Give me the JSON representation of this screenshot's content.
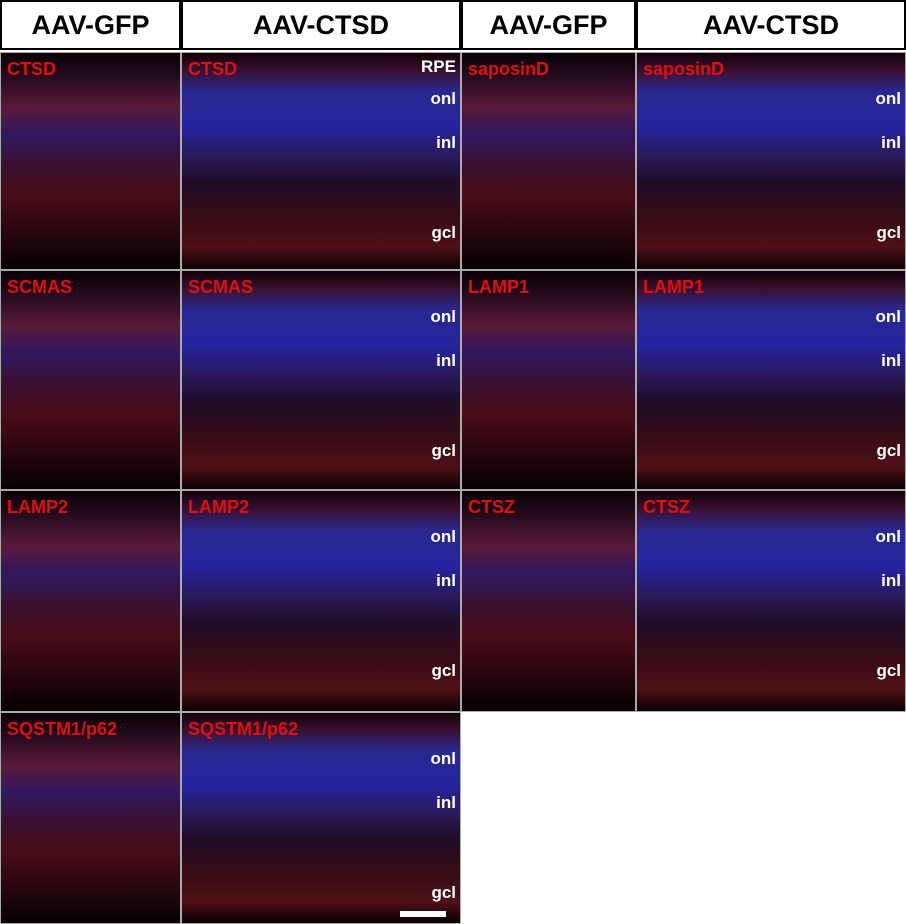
{
  "headers": [
    "AAV-GFP",
    "AAV-CTSD",
    "AAV-GFP",
    "AAV-CTSD"
  ],
  "panels": [
    {
      "label": "CTSD",
      "layers": []
    },
    {
      "label": "CTSD",
      "layers": [
        "RPE",
        "onl",
        "inl",
        "gcl"
      ]
    },
    {
      "label": "saposinD",
      "layers": []
    },
    {
      "label": "saposinD",
      "layers": [
        "onl",
        "inl",
        "gcl"
      ]
    },
    {
      "label": "SCMAS",
      "layers": []
    },
    {
      "label": "SCMAS",
      "layers": [
        "onl",
        "inl",
        "gcl"
      ]
    },
    {
      "label": "LAMP1",
      "layers": []
    },
    {
      "label": "LAMP1",
      "layers": [
        "onl",
        "inl",
        "gcl"
      ]
    },
    {
      "label": "LAMP2",
      "layers": []
    },
    {
      "label": "LAMP2",
      "layers": [
        "onl",
        "inl",
        "gcl"
      ]
    },
    {
      "label": "CTSZ",
      "layers": []
    },
    {
      "label": "CTSZ",
      "layers": [
        "onl",
        "inl",
        "gcl"
      ]
    },
    {
      "label": "SQSTM1/p62",
      "layers": []
    },
    {
      "label": "SQSTM1/p62",
      "layers": [
        "onl",
        "inl",
        "gcl"
      ]
    }
  ]
}
